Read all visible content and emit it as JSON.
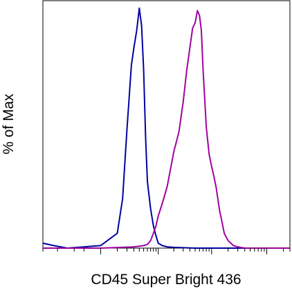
{
  "chart_data": {
    "type": "area",
    "title": "",
    "xlabel": "CD45 Super Bright 436",
    "ylabel": "% of Max",
    "xscale": "log",
    "x_tick_labels_shown": false,
    "y_tick_labels_shown": false,
    "grid": false,
    "legend": "none",
    "xlim": [
      -1000,
      262144
    ],
    "ylim": [
      0,
      100
    ],
    "series": [
      {
        "color": "#0000a0",
        "x": [
          -1000,
          -600,
          -300,
          0,
          100,
          150,
          200,
          260,
          300,
          350,
          400,
          450,
          500,
          550,
          600,
          700,
          800,
          900,
          1000,
          1200,
          1500,
          2000,
          5000,
          100000,
          262144
        ],
        "y": [
          2,
          1,
          0,
          1,
          6,
          20,
          48,
          74,
          81,
          88,
          97,
          90,
          72,
          45,
          27,
          16,
          9,
          5,
          2,
          1,
          0.5,
          0.3,
          0,
          0,
          0
        ]
      },
      {
        "color": "#a000a0",
        "x": [
          -1000,
          0,
          300,
          500,
          600,
          700,
          800,
          900,
          1000,
          1200,
          1500,
          2000,
          2500,
          3000,
          3500,
          4000,
          4500,
          5000,
          5500,
          6000,
          6500,
          7000,
          7500,
          8000,
          9000,
          10000,
          11000,
          12000,
          13000,
          14000,
          15000,
          17000,
          20000,
          25000,
          30000,
          40000,
          262144
        ],
        "y": [
          0,
          0,
          0.5,
          1,
          1.5,
          3,
          6,
          9,
          13,
          18,
          25,
          39,
          47,
          59,
          72,
          81,
          89,
          91,
          96,
          94,
          88,
          72,
          60,
          49,
          38,
          33,
          29,
          25,
          20,
          15,
          12,
          6,
          3,
          1,
          0.5,
          0,
          0
        ]
      }
    ]
  }
}
